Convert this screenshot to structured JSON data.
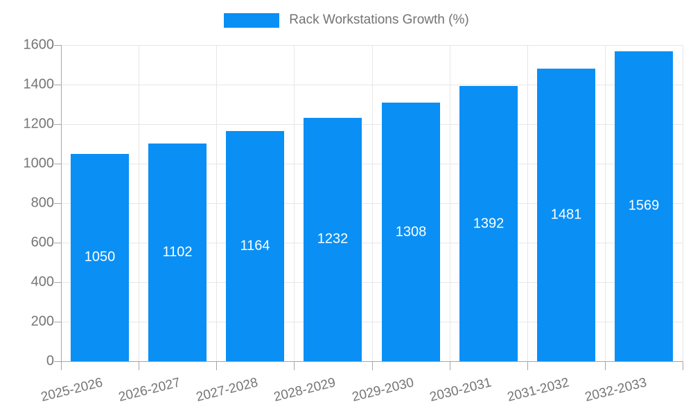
{
  "chart_data": {
    "type": "bar",
    "title": "",
    "categories": [
      "2025-2026",
      "2026-2027",
      "2027-2028",
      "2028-2029",
      "2029-2030",
      "2030-2031",
      "2031-2032",
      "2032-2033"
    ],
    "series": [
      {
        "name": "Rack Workstations Growth (%)",
        "values": [
          1050,
          1102,
          1164,
          1232,
          1308,
          1392,
          1481,
          1569
        ]
      }
    ],
    "xlabel": "",
    "ylabel": "",
    "ylim": [
      0,
      1600
    ],
    "ytick_step": 200,
    "ytick_labels": [
      "0",
      "200",
      "400",
      "600",
      "800",
      "1000",
      "1200",
      "1400",
      "1600"
    ],
    "grid": true,
    "legend_position": "top-center",
    "value_labels_inside_bars": true
  },
  "legend": {
    "label": "Rack Workstations Growth (%)"
  },
  "colors": {
    "bar_fill": "#0a8ff5",
    "grid_line": "#e6e6e6",
    "axis_line": "#a6a6a6",
    "tick_text": "#757575",
    "legend_text": "#737373",
    "value_text": "#ffffff",
    "background": "#ffffff"
  }
}
